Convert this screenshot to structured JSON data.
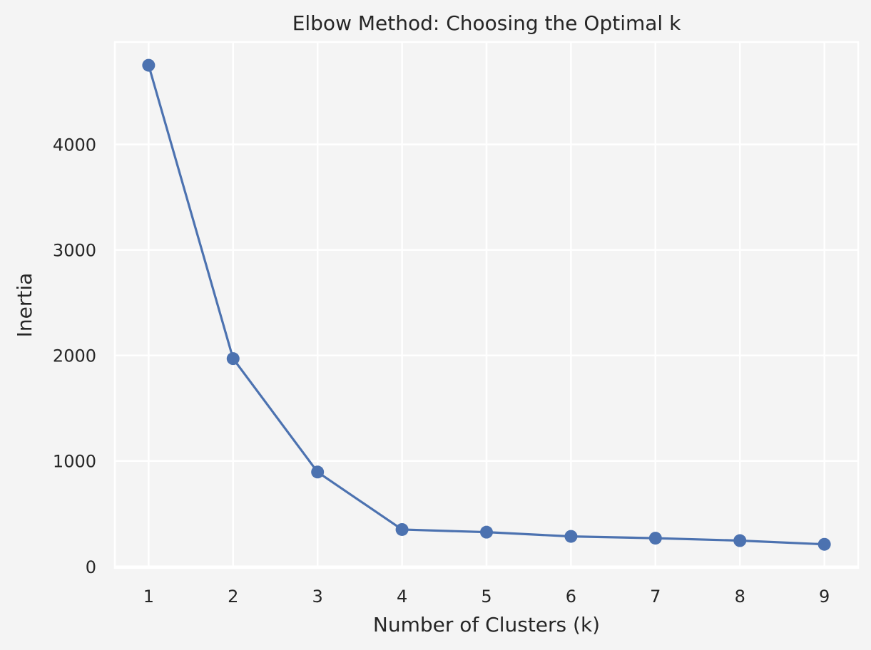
{
  "chart_data": {
    "type": "line",
    "title": "Elbow Method: Choosing the Optimal k",
    "xlabel": "Number of Clusters (k)",
    "ylabel": "Inertia",
    "x": [
      1,
      2,
      3,
      4,
      5,
      6,
      7,
      8,
      9
    ],
    "series": [
      {
        "values": [
          4750,
          1970,
          895,
          350,
          325,
          285,
          268,
          245,
          210
        ],
        "color": "#4c72b0",
        "marker": "circle"
      }
    ],
    "xlim": [
      0.6,
      9.4
    ],
    "ylim": [
      -15,
      4970
    ],
    "xticks": [
      "1",
      "2",
      "3",
      "4",
      "5",
      "6",
      "7",
      "8",
      "9"
    ],
    "yticks": [
      "0",
      "1000",
      "2000",
      "3000",
      "4000"
    ],
    "grid": true,
    "background_color": "#f4f4f4",
    "plot_background_color": "#f4f4f4",
    "grid_color": "#ffffff"
  }
}
